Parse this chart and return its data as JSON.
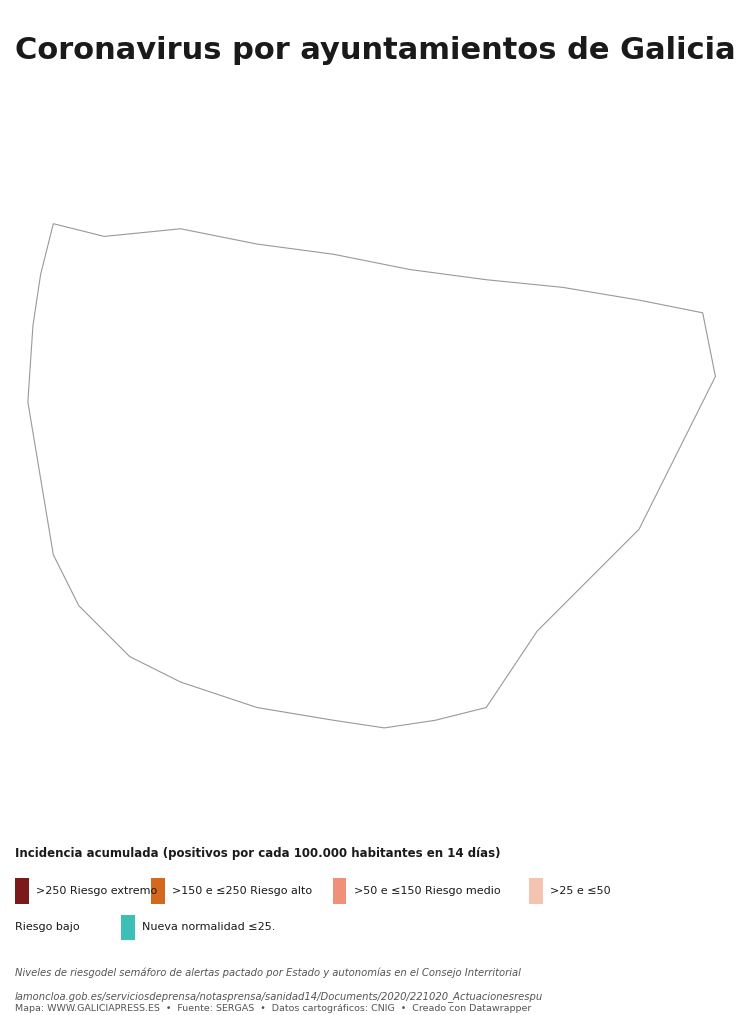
{
  "title": "Coronavirus por ayuntamientos de Galicia",
  "title_fontsize": 22,
  "title_fontweight": "bold",
  "background_color": "#ffffff",
  "legend_title": "Incidencia acumulada (positivos por cada 100.000 habitantes en 14 días)",
  "legend_items": [
    {
      "color": "#7b1a1a",
      "label": ">250 Riesgo extremo"
    },
    {
      "color": "#d4681e",
      "label": ">150 e ≤250 Riesgo alto"
    },
    {
      "color": "#f0907a",
      "label": ">50 e ≤150 Riesgo medio"
    },
    {
      "color": "#f5c4b0",
      "label": ">25 e ≤50\nRiesgo bajo"
    },
    {
      "color": "#3dbfb8",
      "label": "Nueva normalidad ≤25."
    }
  ],
  "footnote_line1": "Niveles de riesgodel semáforo de alertas pactado por Estado y autonomías en el Consejo Interritorial",
  "footnote_line2": "lamoncloa.gob.es/serviciosdeprensa/notasprensa/sanidad14/Documents/2020/221020_Actuacionesrespu",
  "source_line": "Mapa: WWW.GALICIAPRESS.ES  •  Fuente: SERGAS  •  Datos cartográficos: CNIG  •  Creado con Datawrapper",
  "map_colors": {
    "extremo": "#7b1a1a",
    "alto": "#d4681e",
    "medio": "#f0907a",
    "bajo": "#f5c4b0",
    "normal": "#3dbfb8"
  },
  "border_color": "#ffffff",
  "border_lw": 0.5
}
